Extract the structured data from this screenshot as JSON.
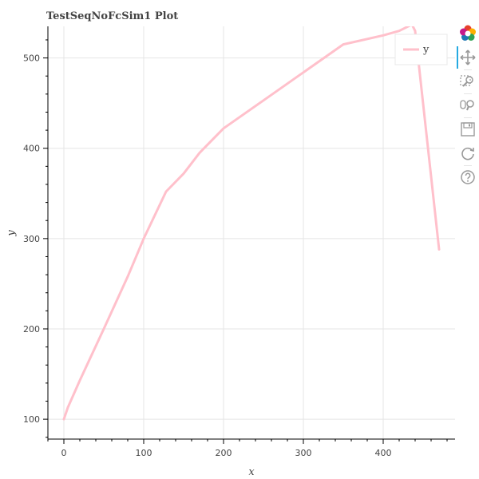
{
  "chart_data": {
    "type": "line",
    "title": "TestSeqNoFcSim1 Plot",
    "xlabel": "x",
    "ylabel": "y",
    "xlim": [
      -20,
      490
    ],
    "ylim": [
      78,
      535
    ],
    "xticks": [
      0,
      100,
      200,
      300,
      400
    ],
    "yticks": [
      100,
      200,
      300,
      400,
      500
    ],
    "grid": true,
    "legend_position": "top-right",
    "series": [
      {
        "name": "y",
        "color": "#ffc0cb",
        "x": [
          0,
          5,
          20,
          50,
          80,
          100,
          128,
          150,
          170,
          200,
          250,
          300,
          350,
          400,
          420,
          436,
          440,
          470
        ],
        "y": [
          100,
          113,
          143,
          200,
          258,
          300,
          352,
          372,
          395,
          422,
          453,
          484,
          515,
          525,
          530,
          537,
          530,
          288
        ]
      }
    ]
  },
  "toolbar": {
    "tools": [
      {
        "name": "bokeh-logo-icon",
        "active": false
      },
      {
        "name": "pan-icon",
        "active": true
      },
      {
        "name": "box-zoom-icon",
        "active": false
      },
      {
        "name": "wheel-zoom-icon",
        "active": false
      },
      {
        "name": "save-icon",
        "active": false
      },
      {
        "name": "reset-icon",
        "active": false
      },
      {
        "name": "help-icon",
        "active": false
      }
    ]
  }
}
